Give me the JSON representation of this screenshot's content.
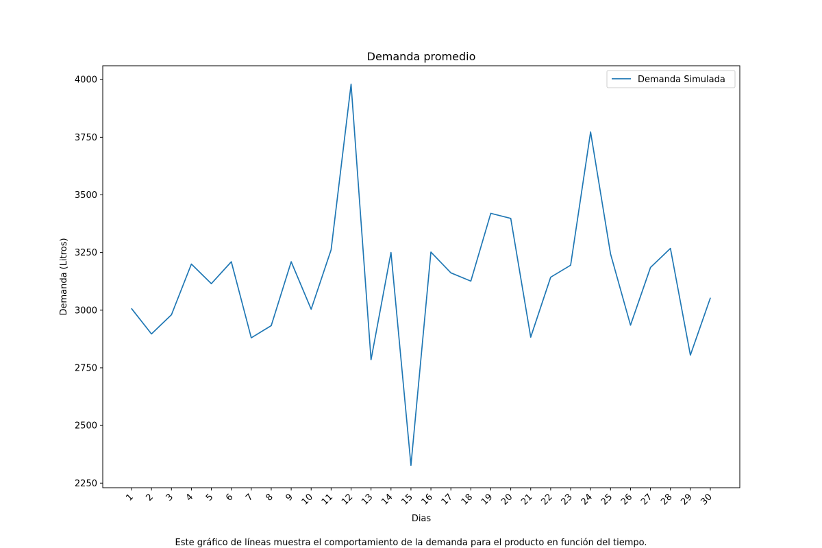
{
  "chart_data": {
    "type": "line",
    "title": "Demanda promedio",
    "xlabel": "Dias",
    "ylabel": "Demanda (Litros)",
    "caption": "Este gráfico de líneas muestra el comportamiento de la demanda para el producto en función del tiempo.",
    "categories": [
      "1",
      "2",
      "3",
      "4",
      "5",
      "6",
      "7",
      "8",
      "9",
      "10",
      "11",
      "12",
      "13",
      "14",
      "15",
      "16",
      "17",
      "18",
      "19",
      "20",
      "21",
      "22",
      "23",
      "24",
      "25",
      "26",
      "27",
      "28",
      "29",
      "30"
    ],
    "y_ticks": [
      2250,
      2500,
      2750,
      3000,
      3250,
      3500,
      3750,
      4000
    ],
    "ylim": [
      2230,
      4060
    ],
    "legend_position": "upper-right",
    "grid": false,
    "series": [
      {
        "name": "Demanda Simulada",
        "color": "#1f77b4",
        "values": [
          3007,
          2897,
          2980,
          3200,
          3115,
          3210,
          2880,
          2933,
          3210,
          3004,
          3262,
          3980,
          2785,
          3250,
          2327,
          3252,
          3162,
          3126,
          3420,
          3398,
          2883,
          3143,
          3195,
          3773,
          3244,
          2935,
          3185,
          3268,
          2805,
          3053
        ]
      }
    ]
  }
}
